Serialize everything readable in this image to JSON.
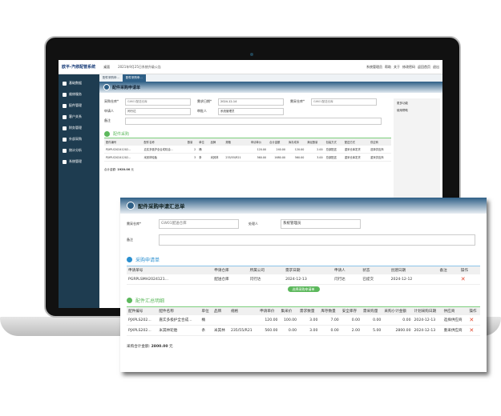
{
  "app": {
    "logo": "欧平-汽修配管系统",
    "home": "桌面",
    "notice": "2021年9月25日系统升级公告",
    "top_links": [
      "系统管理员",
      "帮助",
      "关于",
      "修改密码",
      "返回首页",
      "退出"
    ]
  },
  "sidebar": {
    "items": [
      "基础数据",
      "维修服务",
      "配件管理",
      "客户关系",
      "财务管理",
      "外部采购",
      "统计分析",
      "系统管理"
    ]
  },
  "tabs": [
    "配件采购申...",
    "配件采购申..."
  ],
  "form": {
    "title": "配件采购申请单",
    "warehouse_label": "采购仓库*",
    "warehouse_value": "GW01配送仓库",
    "date_label": "需求日期*",
    "date_value": "2024-12-14",
    "need_wh_label": "需采仓库*",
    "need_wh_value": "GW01配送仓库",
    "applicant_label": "申请人",
    "applicant_value": "闫行达",
    "approver_label": "审批人",
    "approver_value": "系统管理员",
    "remark_label": "备注",
    "section": "配件采购",
    "headers": [
      "配件编号",
      "配件名称",
      "数量",
      "单位",
      "品牌",
      "规格",
      "申请单价",
      "合计金额",
      "库存成本",
      "满足数量",
      "包装方式",
      "配送方式",
      "供应商"
    ],
    "rows": [
      [
        "PJXPLS20241202...",
        "嘉实多极护全合成机油...",
        "2",
        "桶",
        "",
        "",
        "120.00",
        "240.00",
        "120.00",
        "2.00",
        "总部配送",
        "重采仓库发货",
        "选择供应商"
      ],
      [
        "PJXPLS20241202...",
        "米其林轮胎",
        "3",
        "条",
        "米其林",
        "235/55/R21",
        "560.00",
        "1680.00",
        "560.00",
        "3.00",
        "总部配送",
        "重采仓库发货",
        "重采供应商"
      ]
    ],
    "total_label": "合计金额:",
    "total_value": "1920.00",
    "unit": "元"
  },
  "right_panel": [
    "更多功能",
    "使用帮助"
  ],
  "popup": {
    "title": "配件采购申请汇总单",
    "wh_label": "需采仓库*",
    "wh_value": "GW01配送仓库",
    "handler_label": "处理人",
    "handler_value": "系统管理员",
    "remark_label": "备注",
    "sec1": "采购申请单",
    "h1": [
      "申请单号",
      "申请仓库",
      "所属公司",
      "需求日期",
      "申请人",
      "状态",
      "创建日期",
      "备注",
      "操作"
    ],
    "r1": [
      [
        "PGRPLSMH2024121...",
        "配送仓库",
        "闫行达",
        "2024-12-13",
        "闫行达",
        "已提交",
        "2024-12-12",
        ""
      ]
    ],
    "select_btn": "选择采购申请单",
    "sec2": "配件汇总明细",
    "h2": [
      "配件编号",
      "配件名称",
      "单位",
      "品牌",
      "规格",
      "申请单价",
      "集采价",
      "需求数量",
      "库存数量",
      "安全库存",
      "需采购量",
      "采购小计金额",
      "计划采购日期",
      "供应商",
      "操作"
    ],
    "r2": [
      [
        "PJXPLS202...",
        "嘉实多极护全合成...",
        "桶",
        "",
        "",
        "120.00",
        "100.00",
        "3.00",
        "7.00",
        "0.00",
        "0.00",
        "0.00",
        "2024-12-13",
        "选择供应商"
      ],
      [
        "PJXPLS202...",
        "米其林轮胎",
        "条",
        "米其林",
        "235/55/R21",
        "560.00",
        "0.00",
        "3.00",
        "0.00",
        "2.00",
        "5.00",
        "2800.00",
        "2024-12-13",
        "重采供应商"
      ]
    ],
    "total_label": "采购合计金额:",
    "total_value": "2800.00",
    "unit": "元"
  },
  "colors": {
    "nav": "#1e3c50",
    "accent": "#2e5f86",
    "green": "#5cb85c",
    "delete": "#e0442a"
  }
}
